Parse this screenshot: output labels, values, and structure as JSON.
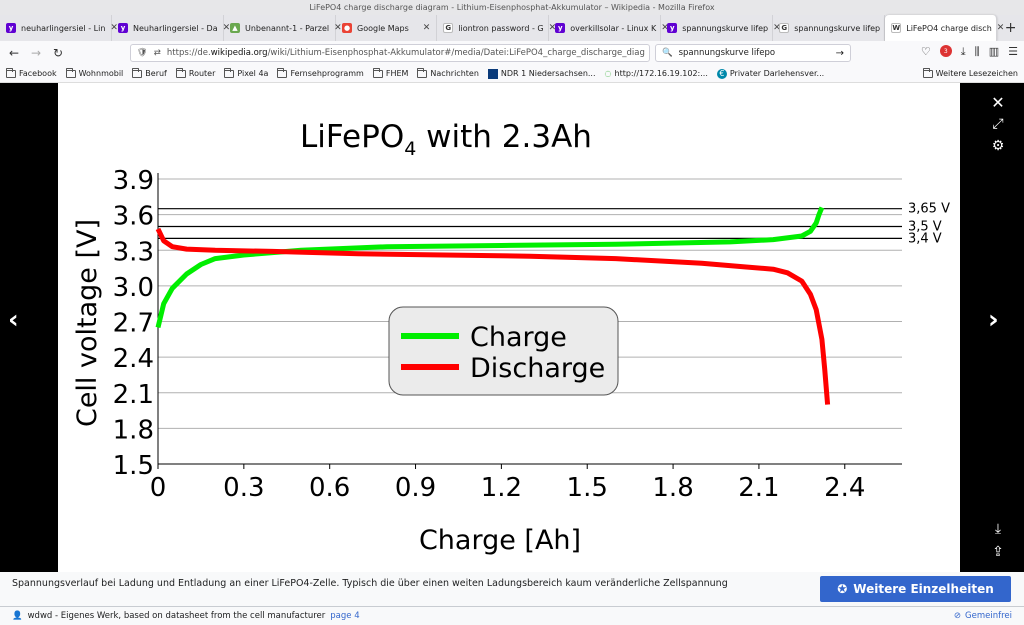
{
  "window": {
    "title": "LiFePO4 charge discharge diagram - Lithium-Eisenphosphat-Akkumulator – Wikipedia - Mozilla Firefox"
  },
  "tabs": [
    {
      "label": "neuharlingersiel - Lin",
      "icon": "yahoo-icon",
      "color": "#6001d2"
    },
    {
      "label": "Neuharlingersiel - Da",
      "icon": "yahoo-icon",
      "color": "#6001d2"
    },
    {
      "label": "Unbenannt-1 - Parzel",
      "icon": "landscape-icon",
      "color": "#6aa84f"
    },
    {
      "label": "Google Maps",
      "icon": "maps-pin-icon",
      "color": "#ea4335"
    },
    {
      "label": "liontron password - G",
      "icon": "google-icon",
      "color": "#ffffff"
    },
    {
      "label": "overkillsolar - Linux K",
      "icon": "yahoo-icon",
      "color": "#6001d2"
    },
    {
      "label": "spannungskurve lifep",
      "icon": "yahoo-icon",
      "color": "#6001d2"
    },
    {
      "label": "spannungskurve lifep",
      "icon": "google-icon",
      "color": "#ffffff"
    },
    {
      "label": "LiFePO4 charge disch",
      "icon": "wikipedia-icon",
      "color": "#ffffff",
      "active": true
    }
  ],
  "url": {
    "prefix": "https://de.",
    "domain": "wikipedia.org",
    "rest": "/wiki/Lithium-Eisenphosphat-Akkumulator#/media/Datei:LiFePO4_charge_discharge_diag"
  },
  "search": {
    "value": "spannungskurve lifepo"
  },
  "bookmarks": [
    {
      "label": "Facebook",
      "type": "folder"
    },
    {
      "label": "Wohnmobil",
      "type": "folder"
    },
    {
      "label": "Beruf",
      "type": "folder"
    },
    {
      "label": "Router",
      "type": "folder"
    },
    {
      "label": "Pixel 4a",
      "type": "folder"
    },
    {
      "label": "Fernsehprogramm",
      "type": "folder"
    },
    {
      "label": "FHEM",
      "type": "folder"
    },
    {
      "label": "Nachrichten",
      "type": "folder"
    },
    {
      "label": "NDR 1 Niedersachsen...",
      "type": "ndr"
    },
    {
      "label": "http://172.16.19.102:...",
      "type": "loading"
    },
    {
      "label": "Privater Darlehensver...",
      "type": "site"
    }
  ],
  "bookmarks_right": "Weitere Lesezeichen",
  "chart_data": {
    "type": "line",
    "title": "LiFePO",
    "title_sub": "4",
    "title_rest": " with 2.3Ah",
    "xlabel": "Charge [Ah]",
    "ylabel": "Cell voltage [V]",
    "xlim": [
      0,
      2.6
    ],
    "ylim": [
      1.5,
      3.9
    ],
    "xticks": [
      "0",
      "0.3",
      "0.6",
      "0.9",
      "1.2",
      "1.5",
      "1.8",
      "2.1",
      "2.4"
    ],
    "yticks": [
      "1.5",
      "1.8",
      "2.1",
      "2.4",
      "2.7",
      "3.0",
      "3.3",
      "3.6",
      "3.9"
    ],
    "grid": true,
    "reference_lines": [
      {
        "label": "3,65 V",
        "y": 3.65
      },
      {
        "label": "3,5 V",
        "y": 3.5
      },
      {
        "label": "3,4 V",
        "y": 3.4
      }
    ],
    "legend": {
      "position": "center"
    },
    "series": [
      {
        "name": "Charge",
        "color": "#00ee00",
        "x": [
          0,
          0.02,
          0.05,
          0.1,
          0.15,
          0.2,
          0.3,
          0.5,
          0.8,
          1.2,
          1.6,
          2.0,
          2.15,
          2.25,
          2.28,
          2.3,
          2.31,
          2.32
        ],
        "y": [
          2.65,
          2.85,
          2.98,
          3.1,
          3.18,
          3.23,
          3.26,
          3.3,
          3.33,
          3.34,
          3.35,
          3.37,
          3.39,
          3.42,
          3.46,
          3.53,
          3.6,
          3.66
        ]
      },
      {
        "name": "Discharge",
        "color": "#ff0000",
        "x": [
          0,
          0.02,
          0.05,
          0.1,
          0.2,
          0.4,
          0.7,
          1.0,
          1.3,
          1.6,
          1.9,
          2.05,
          2.15,
          2.2,
          2.25,
          2.28,
          2.3,
          2.32,
          2.33,
          2.34
        ],
        "y": [
          3.48,
          3.38,
          3.33,
          3.31,
          3.3,
          3.29,
          3.27,
          3.26,
          3.25,
          3.23,
          3.19,
          3.16,
          3.14,
          3.11,
          3.04,
          2.93,
          2.8,
          2.55,
          2.3,
          2.0
        ]
      }
    ]
  },
  "viewer": {
    "close": "✕",
    "expand": "⤢",
    "settings": "⚙",
    "download": "⤓",
    "share": "⇪",
    "prev": "‹",
    "next": "›"
  },
  "caption": {
    "text": "Spannungsverlauf bei Ladung und Entladung an einer LiFePO4-Zelle. Typisch die über einen weiten Ladungsbereich kaum veränderliche Zellspannung",
    "more_button": "Weitere Einzelheiten"
  },
  "attribution": {
    "text": "wdwd - Eigenes Werk, based on datasheet from the cell manufacturer",
    "link": "page 4",
    "license": "Gemeinfrei"
  }
}
